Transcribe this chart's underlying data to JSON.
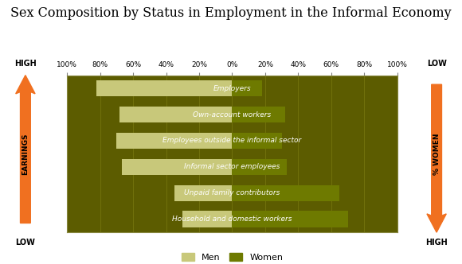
{
  "title": "Sex Composition by Status in Employment in the Informal Economy",
  "categories": [
    "Employers",
    "Own-account workers",
    "Employees outside the informal sector",
    "Informal sector employees",
    "Unpaid family contributors",
    "Household and domestic workers"
  ],
  "men_values": [
    82,
    68,
    70,
    67,
    35,
    30
  ],
  "women_values": [
    18,
    32,
    30,
    33,
    65,
    70
  ],
  "men_color": "#c8c87a",
  "women_color": "#6e7a00",
  "chart_bg": "#5c5c00",
  "title_fontsize": 11.5,
  "bar_label_fontsize": 6.5,
  "arrow_color": "#f07020",
  "left_top_label": "HIGH",
  "left_bottom_label": "LOW",
  "right_top_label": "LOW",
  "right_bottom_label": "HIGH",
  "left_arrow_label": "EARNINGS",
  "right_arrow_label": "% WOMEN"
}
